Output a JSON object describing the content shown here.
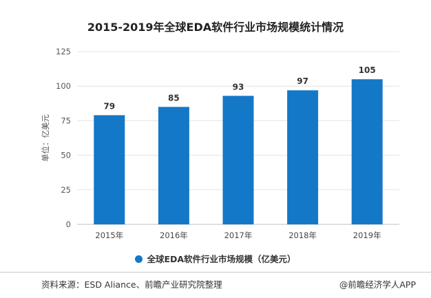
{
  "chart_data": {
    "type": "bar",
    "title": "2015-2019年全球EDA软件行业市场规模统计情况",
    "categories": [
      "2015年",
      "2016年",
      "2017年",
      "2018年",
      "2019年"
    ],
    "series": [
      {
        "name": "全球EDA软件行业市场规模（亿美元）",
        "values": [
          79,
          85,
          93,
          97,
          105
        ]
      }
    ],
    "data_labels": [
      "79",
      "85",
      "93",
      "97",
      "105"
    ],
    "xlabel": "",
    "ylabel": "单位：亿美元",
    "ylim": [
      0,
      125
    ],
    "yticks": [
      0,
      25,
      50,
      75,
      100,
      125
    ],
    "ytick_labels": [
      "0",
      "25",
      "50",
      "75",
      "100",
      "125"
    ],
    "grid": true,
    "legend_position": "bottom",
    "bar_color": "#1478c8"
  },
  "footer": {
    "source": "资料来源：ESD Aliance、前瞻产业研究院整理",
    "brand": "@前瞻经济学人APP"
  }
}
